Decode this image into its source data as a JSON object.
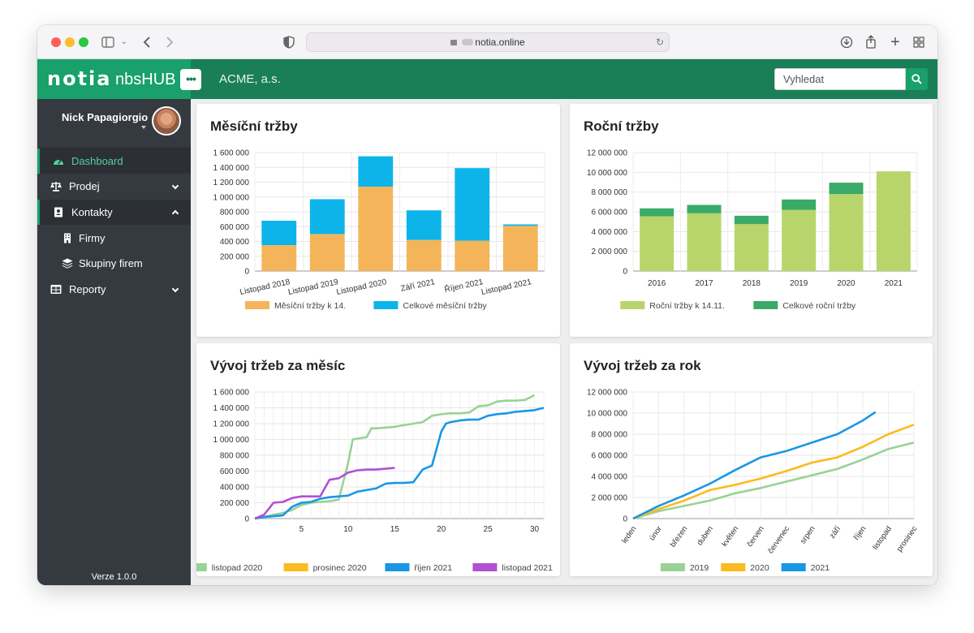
{
  "browser": {
    "url": "notia.online"
  },
  "header": {
    "logo": "notia",
    "product": "nbsHUB",
    "more_label": "•••",
    "company": "ACME, a.s.",
    "search_placeholder": "Vyhledat"
  },
  "user": {
    "name": "Nick Papagiorgio"
  },
  "sidebar": {
    "items": [
      {
        "label": "Dashboard",
        "icon": "gauge-icon",
        "state": "active"
      },
      {
        "label": "Prodej",
        "icon": "balance-scale-icon",
        "state": "collapsed"
      },
      {
        "label": "Kontakty",
        "icon": "address-book-icon",
        "state": "expanded"
      },
      {
        "label": "Firmy",
        "icon": "building-icon",
        "state": "child"
      },
      {
        "label": "Skupiny firem",
        "icon": "layers-icon",
        "state": "child"
      },
      {
        "label": "Reporty",
        "icon": "table-icon",
        "state": "collapsed"
      }
    ],
    "version": "Verze 1.0.0"
  },
  "colors": {
    "header": "#1a7f56",
    "brand": "#19a06b",
    "sidebar": "#353a40",
    "orange": "#f4b55a",
    "blue": "#0db4ea",
    "light_green": "#b8d56b",
    "dark_green": "#3aaa68",
    "line_2019": "#98d296",
    "line_2020": "#fbbb1e",
    "line_2021": "#1a96e6",
    "line_nov2021": "#b151d2"
  },
  "charts": {
    "monthly": {
      "title": "Měsíční tržby",
      "chart_data": {
        "type": "bar",
        "stacked": true,
        "categories": [
          "Listopad 2018",
          "Listopad 2019",
          "Listopad 2020",
          "Září 2021",
          "Říjen 2021",
          "Listopad 2021"
        ],
        "series": [
          {
            "name": "Měsíční tržby k 14.",
            "values": [
              350000,
              500000,
              1140000,
              420000,
              410000,
              610000
            ]
          },
          {
            "name": "Celkové měsíční tržby",
            "values": [
              330000,
              470000,
              410000,
              400000,
              980000,
              20000
            ]
          }
        ],
        "ylim": [
          0,
          1600000
        ],
        "yticks": [
          "0",
          "200 000",
          "400 000",
          "600 000",
          "800 000",
          "1 000 000",
          "1 200 000",
          "1 400 000",
          "1 600 000"
        ],
        "legend": "bottom"
      }
    },
    "yearly": {
      "title": "Roční tržby",
      "chart_data": {
        "type": "bar",
        "stacked": true,
        "categories": [
          "2016",
          "2017",
          "2018",
          "2019",
          "2020",
          "2021"
        ],
        "series": [
          {
            "name": "Roční tržby k 14.11.",
            "values": [
              5550000,
              5850000,
              4750000,
              6200000,
              7800000,
              10100000
            ]
          },
          {
            "name": "Celkové roční tržby",
            "values": [
              800000,
              850000,
              850000,
              1050000,
              1150000,
              0
            ]
          }
        ],
        "ylim": [
          0,
          12000000
        ],
        "yticks": [
          "0",
          "2 000 000",
          "4 000 000",
          "6 000 000",
          "8 000 000",
          "10 000 000",
          "12 000 000"
        ],
        "legend": "bottom"
      }
    },
    "monthly_trend": {
      "title": "Vývoj tržeb za měsíc",
      "chart_data": {
        "type": "line",
        "xlim": [
          0,
          31
        ],
        "xticks": [
          "5",
          "10",
          "15",
          "20",
          "25",
          "30"
        ],
        "ylim": [
          0,
          1600000
        ],
        "yticks": [
          "0",
          "200 000",
          "400 000",
          "600 000",
          "800 000",
          "1 000 000",
          "1 200 000",
          "1 400 000",
          "1 600 000"
        ],
        "legend": "bottom",
        "series": [
          {
            "name": "listopad 2020",
            "points": [
              [
                0,
                0
              ],
              [
                1,
                20000
              ],
              [
                2,
                50000
              ],
              [
                3,
                70000
              ],
              [
                4,
                110000
              ],
              [
                5,
                170000
              ],
              [
                6,
                200000
              ],
              [
                7,
                210000
              ],
              [
                8,
                220000
              ],
              [
                9,
                240000
              ],
              [
                10,
                700000
              ],
              [
                10.5,
                1000000
              ],
              [
                11,
                1010000
              ],
              [
                12,
                1030000
              ],
              [
                12.5,
                1140000
              ],
              [
                13,
                1140000
              ],
              [
                14,
                1150000
              ],
              [
                15,
                1160000
              ],
              [
                16,
                1180000
              ],
              [
                17,
                1200000
              ],
              [
                18,
                1220000
              ],
              [
                19,
                1300000
              ],
              [
                20,
                1320000
              ],
              [
                21,
                1330000
              ],
              [
                22,
                1330000
              ],
              [
                23,
                1340000
              ],
              [
                24,
                1420000
              ],
              [
                25,
                1430000
              ],
              [
                26,
                1480000
              ],
              [
                27,
                1490000
              ],
              [
                28,
                1490000
              ],
              [
                29,
                1500000
              ],
              [
                30,
                1560000
              ]
            ]
          },
          {
            "name": "prosinec 2020",
            "points": []
          },
          {
            "name": "říjen 2021",
            "points": [
              [
                0,
                0
              ],
              [
                1,
                20000
              ],
              [
                2,
                30000
              ],
              [
                3,
                40000
              ],
              [
                4,
                150000
              ],
              [
                5,
                200000
              ],
              [
                6,
                210000
              ],
              [
                7,
                250000
              ],
              [
                8,
                270000
              ],
              [
                9,
                280000
              ],
              [
                10,
                290000
              ],
              [
                11,
                340000
              ],
              [
                12,
                360000
              ],
              [
                13,
                380000
              ],
              [
                14,
                440000
              ],
              [
                15,
                450000
              ],
              [
                16,
                450000
              ],
              [
                17,
                460000
              ],
              [
                18,
                620000
              ],
              [
                19,
                670000
              ],
              [
                20,
                1100000
              ],
              [
                20.5,
                1200000
              ],
              [
                21,
                1220000
              ],
              [
                22,
                1240000
              ],
              [
                23,
                1250000
              ],
              [
                24,
                1250000
              ],
              [
                25,
                1300000
              ],
              [
                26,
                1320000
              ],
              [
                27,
                1330000
              ],
              [
                28,
                1350000
              ],
              [
                29,
                1360000
              ],
              [
                30,
                1370000
              ],
              [
                31,
                1400000
              ]
            ]
          },
          {
            "name": "listopad 2021",
            "points": [
              [
                0,
                0
              ],
              [
                1,
                50000
              ],
              [
                2,
                200000
              ],
              [
                3,
                210000
              ],
              [
                4,
                260000
              ],
              [
                5,
                280000
              ],
              [
                6,
                280000
              ],
              [
                7,
                280000
              ],
              [
                8,
                490000
              ],
              [
                9,
                510000
              ],
              [
                10,
                580000
              ],
              [
                11,
                610000
              ],
              [
                12,
                620000
              ],
              [
                13,
                620000
              ],
              [
                14,
                630000
              ],
              [
                15,
                640000
              ]
            ]
          }
        ]
      }
    },
    "yearly_trend": {
      "title": "Vývoj tržeb za rok",
      "chart_data": {
        "type": "line",
        "categories": [
          "leden",
          "únor",
          "březen",
          "duben",
          "květen",
          "červen",
          "červenec",
          "srpen",
          "září",
          "říjen",
          "listopad",
          "prosinec"
        ],
        "ylim": [
          0,
          12000000
        ],
        "yticks": [
          "0",
          "2 000 000",
          "4 000 000",
          "6 000 000",
          "8 000 000",
          "10 000 000",
          "12 000 000"
        ],
        "legend": "bottom",
        "series": [
          {
            "name": "2019",
            "points": [
              [
                0,
                0
              ],
              [
                1,
                700000
              ],
              [
                2,
                1200000
              ],
              [
                3,
                1700000
              ],
              [
                4,
                2400000
              ],
              [
                5,
                2900000
              ],
              [
                6,
                3500000
              ],
              [
                7,
                4100000
              ],
              [
                8,
                4700000
              ],
              [
                9,
                5600000
              ],
              [
                10,
                6600000
              ],
              [
                11,
                7200000
              ]
            ]
          },
          {
            "name": "2020",
            "points": [
              [
                0,
                0
              ],
              [
                1,
                900000
              ],
              [
                2,
                1700000
              ],
              [
                3,
                2700000
              ],
              [
                4,
                3200000
              ],
              [
                5,
                3800000
              ],
              [
                6,
                4500000
              ],
              [
                7,
                5300000
              ],
              [
                8,
                5800000
              ],
              [
                9,
                6800000
              ],
              [
                10,
                8000000
              ],
              [
                11,
                8900000
              ]
            ]
          },
          {
            "name": "2021",
            "points": [
              [
                0,
                0
              ],
              [
                1,
                1200000
              ],
              [
                2,
                2200000
              ],
              [
                3,
                3300000
              ],
              [
                4,
                4600000
              ],
              [
                5,
                5800000
              ],
              [
                6,
                6400000
              ],
              [
                7,
                7200000
              ],
              [
                8,
                8000000
              ],
              [
                9,
                9300000
              ],
              [
                9.5,
                10100000
              ]
            ]
          }
        ]
      }
    }
  }
}
